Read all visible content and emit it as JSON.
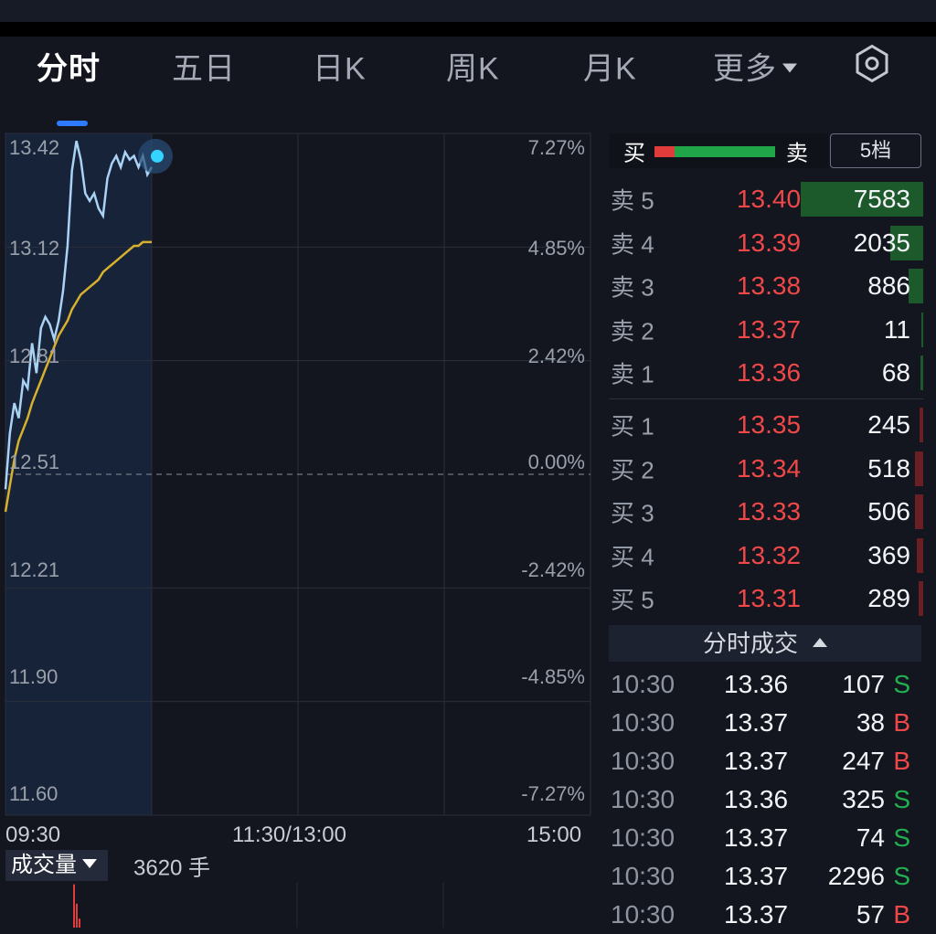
{
  "tabs": [
    {
      "label": "分时",
      "active": true
    },
    {
      "label": "五日"
    },
    {
      "label": "日K"
    },
    {
      "label": "周K"
    },
    {
      "label": "月K"
    },
    {
      "label": "更多"
    }
  ],
  "settings_icon": "hexagon-settings-icon",
  "chart_data": {
    "type": "line",
    "price_ticks": [
      "13.42",
      "13.12",
      "12.81",
      "12.51",
      "12.21",
      "11.90",
      "11.60"
    ],
    "pct_ticks": [
      "7.27%",
      "4.85%",
      "2.42%",
      "0.00%",
      "-2.42%",
      "-4.85%",
      "-7.27%"
    ],
    "time_ticks": [
      "09:30",
      "11:30/13:00",
      "15:00"
    ],
    "prev_close": 12.51,
    "ylim": [
      11.6,
      13.42
    ],
    "series": [
      {
        "color": "#a9d2f5",
        "values": [
          12.47,
          12.62,
          12.7,
          12.66,
          12.76,
          12.74,
          12.86,
          12.78,
          12.9,
          12.93,
          12.91,
          12.87,
          12.92,
          13.0,
          13.12,
          13.32,
          13.4,
          13.35,
          13.26,
          13.24,
          13.26,
          13.22,
          13.2,
          13.3,
          13.34,
          13.36,
          13.33,
          13.37,
          13.35,
          13.36,
          13.33,
          13.36,
          13.31,
          13.33
        ]
      },
      {
        "color": "#d6b02e",
        "values": [
          12.41,
          12.48,
          12.55,
          12.6,
          12.63,
          12.66,
          12.7,
          12.73,
          12.76,
          12.79,
          12.82,
          12.85,
          12.88,
          12.9,
          12.92,
          12.95,
          12.97,
          12.99,
          13.0,
          13.01,
          13.02,
          13.03,
          13.05,
          13.06,
          13.07,
          13.08,
          13.09,
          13.1,
          13.11,
          13.12,
          13.12,
          13.13,
          13.13,
          13.13
        ]
      }
    ],
    "total_points": 242,
    "volume_values": [
      2900,
      1600,
      600
    ]
  },
  "volume": {
    "label": "成交量",
    "value": "3620 手"
  },
  "book": {
    "buy_label": "买",
    "sell_label": "卖",
    "level_button": "5档",
    "buy_ratio": 0.17,
    "up_color": "#f04848",
    "down_color": "#20b04f",
    "asks": [
      {
        "name": "卖 5",
        "price": "13.40",
        "qty": "7583",
        "depth": 1.0
      },
      {
        "name": "卖 4",
        "price": "13.39",
        "qty": "2035",
        "depth": 0.27
      },
      {
        "name": "卖 3",
        "price": "13.38",
        "qty": "886",
        "depth": 0.12
      },
      {
        "name": "卖 2",
        "price": "13.37",
        "qty": "11",
        "depth": 0.01
      },
      {
        "name": "卖 1",
        "price": "13.36",
        "qty": "68",
        "depth": 0.02
      }
    ],
    "bids": [
      {
        "name": "买 1",
        "price": "13.35",
        "qty": "245",
        "depth": 0.03
      },
      {
        "name": "买 2",
        "price": "13.34",
        "qty": "518",
        "depth": 0.07
      },
      {
        "name": "买 3",
        "price": "13.33",
        "qty": "506",
        "depth": 0.07
      },
      {
        "name": "买 4",
        "price": "13.32",
        "qty": "369",
        "depth": 0.05
      },
      {
        "name": "买 5",
        "price": "13.31",
        "qty": "289",
        "depth": 0.04
      }
    ]
  },
  "ticks_header": "分时成交",
  "ticks": [
    {
      "time": "10:30",
      "price": "13.36",
      "vol": "107",
      "dir": "S"
    },
    {
      "time": "10:30",
      "price": "13.37",
      "vol": "38",
      "dir": "B"
    },
    {
      "time": "10:30",
      "price": "13.37",
      "vol": "247",
      "dir": "B"
    },
    {
      "time": "10:30",
      "price": "13.36",
      "vol": "325",
      "dir": "S"
    },
    {
      "time": "10:30",
      "price": "13.37",
      "vol": "74",
      "dir": "S"
    },
    {
      "time": "10:30",
      "price": "13.37",
      "vol": "2296",
      "dir": "S"
    },
    {
      "time": "10:30",
      "price": "13.37",
      "vol": "57",
      "dir": "B"
    }
  ]
}
